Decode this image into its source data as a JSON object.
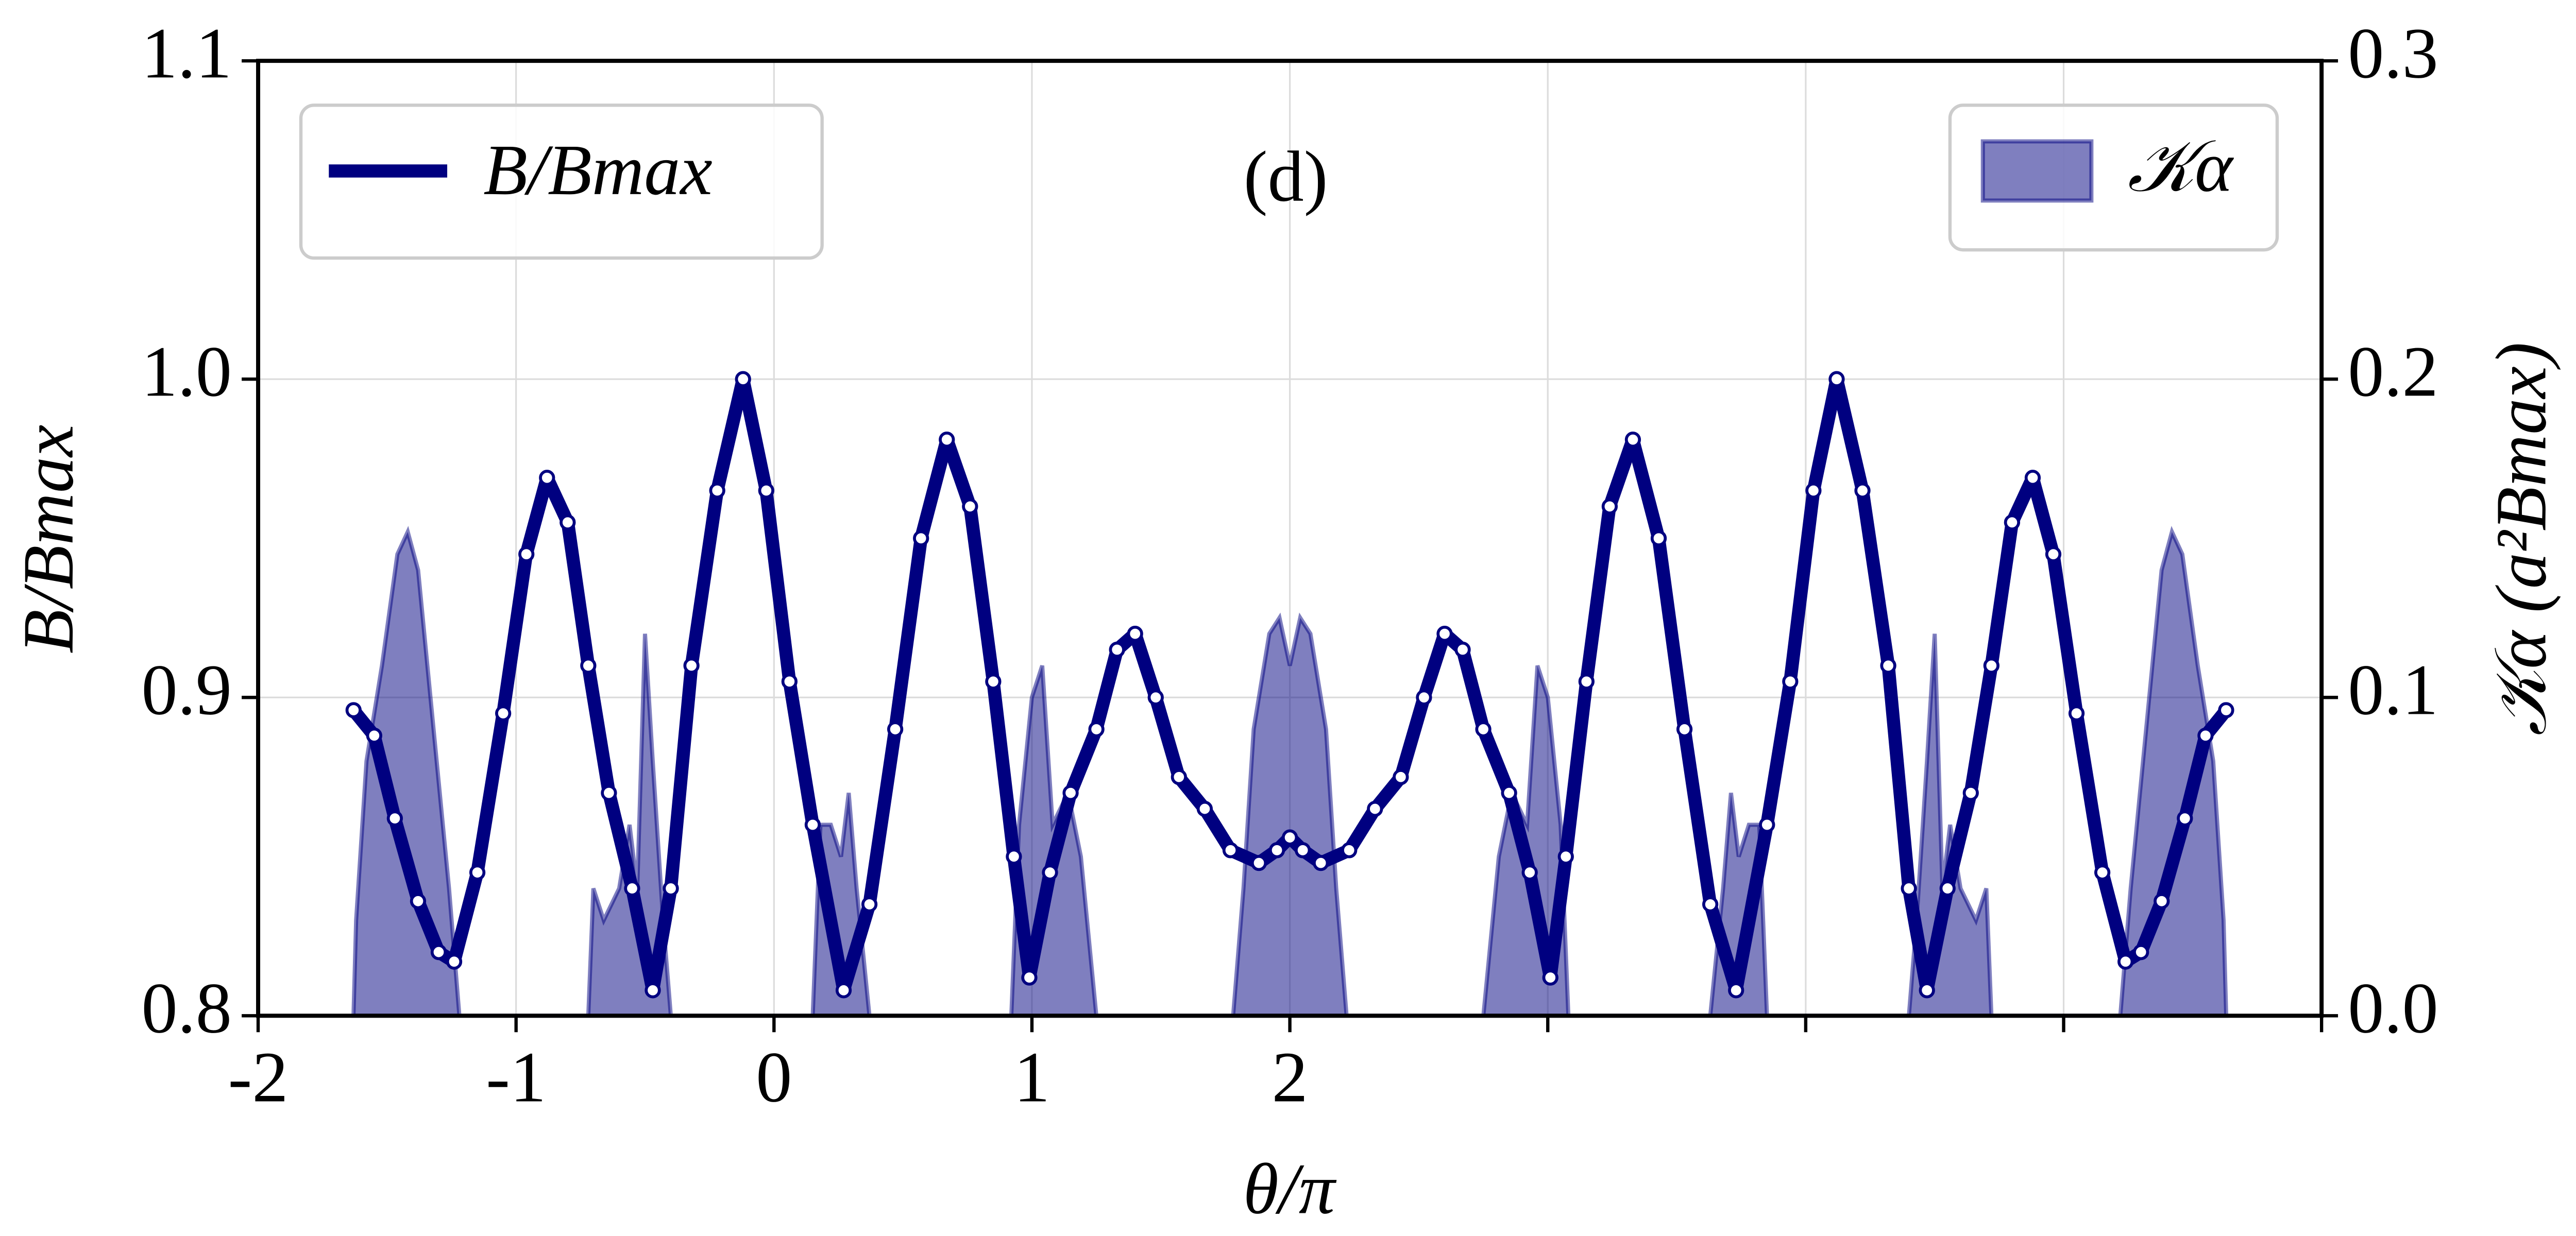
{
  "chart_data": {
    "type": "line",
    "annotation": "(d)",
    "xlabel": "θ/π",
    "ylabel": "B/Bmax",
    "y2label": "𝒦α (a²Bmax)",
    "xlim": [
      -2,
      6
    ],
    "xticks": [
      -2,
      -1,
      0,
      1,
      2
    ],
    "xticks_unlabeled": [
      3,
      4,
      5,
      6
    ],
    "ylim": [
      0.8,
      1.1
    ],
    "yticks": [
      0.8,
      0.9,
      {
        "value": 1,
        "label": "1.0"
      },
      1.1
    ],
    "y2lim": [
      0,
      0.3
    ],
    "y2ticks": [
      {
        "value": 0,
        "label": "0.0"
      },
      0.1,
      0.2,
      0.3
    ],
    "grid": true,
    "series": [
      {
        "name": "𝒦α",
        "color": "#000080",
        "fill": true,
        "axis": "y2",
        "legend": "upper right",
        "x": [
          -1.63,
          -1.62,
          -1.58,
          -1.52,
          -1.46,
          -1.42,
          -1.38,
          -1.32,
          -1.26,
          -1.22,
          -0.72,
          -0.7,
          -0.66,
          -0.6,
          -0.56,
          -0.53,
          -0.5,
          -0.47,
          -0.43,
          -0.4,
          0.15,
          0.18,
          0.22,
          0.26,
          0.29,
          0.32,
          0.37,
          0.92,
          0.95,
          1.0,
          1.04,
          1.08,
          1.14,
          1.19,
          1.25,
          1.78,
          1.82,
          1.86,
          1.92,
          1.96,
          2.0,
          2.04,
          2.08,
          2.14,
          2.18,
          2.22,
          2.75,
          2.81,
          2.86,
          2.92,
          2.96,
          3.0,
          3.05,
          3.08,
          3.63,
          3.68,
          3.71,
          3.74,
          3.78,
          3.82,
          3.85,
          4.4,
          4.43,
          4.47,
          4.5,
          4.53,
          4.56,
          4.6,
          4.66,
          4.7,
          4.72,
          5.22,
          5.26,
          5.32,
          5.38,
          5.42,
          5.46,
          5.52,
          5.58,
          5.62,
          5.63
        ],
        "values": [
          0,
          0.03,
          0.08,
          0.11,
          0.145,
          0.152,
          0.14,
          0.09,
          0.04,
          0,
          0,
          0.04,
          0.03,
          0.04,
          0.06,
          0.04,
          0.12,
          0.08,
          0.03,
          0,
          0,
          0.06,
          0.06,
          0.05,
          0.07,
          0.04,
          0,
          0,
          0.06,
          0.1,
          0.11,
          0.06,
          0.07,
          0.05,
          0,
          0,
          0.04,
          0.09,
          0.12,
          0.125,
          0.11,
          0.125,
          0.12,
          0.09,
          0.04,
          0,
          0,
          0.05,
          0.07,
          0.06,
          0.11,
          0.1,
          0.06,
          0,
          0,
          0.04,
          0.07,
          0.05,
          0.06,
          0.06,
          0,
          0,
          0.03,
          0.08,
          0.12,
          0.04,
          0.06,
          0.04,
          0.03,
          0.04,
          0,
          0,
          0.04,
          0.09,
          0.14,
          0.152,
          0.145,
          0.11,
          0.08,
          0.03,
          0
        ]
      },
      {
        "name": "B/Bmax",
        "color": "#000080",
        "fill": false,
        "markers": true,
        "legend": "upper left",
        "x": [
          -1.63,
          -1.55,
          -1.47,
          -1.38,
          -1.3,
          -1.24,
          -1.15,
          -1.05,
          -0.96,
          -0.88,
          -0.8,
          -0.72,
          -0.64,
          -0.55,
          -0.47,
          -0.4,
          -0.32,
          -0.22,
          -0.12,
          -0.03,
          0.06,
          0.15,
          0.27,
          0.37,
          0.47,
          0.57,
          0.67,
          0.76,
          0.85,
          0.93,
          0.99,
          1.07,
          1.15,
          1.25,
          1.33,
          1.4,
          1.48,
          1.57,
          1.67,
          1.77,
          1.88,
          1.95,
          2.0,
          2.05,
          2.12,
          2.23,
          2.33,
          2.43,
          2.52,
          2.6,
          2.67,
          2.75,
          2.85,
          2.93,
          3.01,
          3.07,
          3.15,
          3.24,
          3.33,
          3.43,
          3.53,
          3.63,
          3.73,
          3.85,
          3.94,
          4.03,
          4.12,
          4.22,
          4.32,
          4.4,
          4.47,
          4.55,
          4.64,
          4.72,
          4.8,
          4.88,
          4.96,
          5.05,
          5.15,
          5.24,
          5.3,
          5.38,
          5.47,
          5.55,
          5.63
        ],
        "values": [
          0.896,
          0.888,
          0.862,
          0.836,
          0.82,
          0.817,
          0.845,
          0.895,
          0.945,
          0.969,
          0.955,
          0.91,
          0.87,
          0.84,
          0.808,
          0.84,
          0.91,
          0.965,
          1.0,
          0.965,
          0.905,
          0.86,
          0.808,
          0.835,
          0.89,
          0.95,
          0.981,
          0.96,
          0.905,
          0.85,
          0.812,
          0.845,
          0.87,
          0.89,
          0.915,
          0.92,
          0.9,
          0.875,
          0.865,
          0.852,
          0.848,
          0.852,
          0.856,
          0.852,
          0.848,
          0.852,
          0.865,
          0.875,
          0.9,
          0.92,
          0.915,
          0.89,
          0.87,
          0.845,
          0.812,
          0.85,
          0.905,
          0.96,
          0.981,
          0.95,
          0.89,
          0.835,
          0.808,
          0.86,
          0.905,
          0.965,
          1.0,
          0.965,
          0.91,
          0.84,
          0.808,
          0.84,
          0.87,
          0.91,
          0.955,
          0.969,
          0.945,
          0.895,
          0.845,
          0.817,
          0.82,
          0.836,
          0.862,
          0.888,
          0.896
        ]
      }
    ]
  }
}
